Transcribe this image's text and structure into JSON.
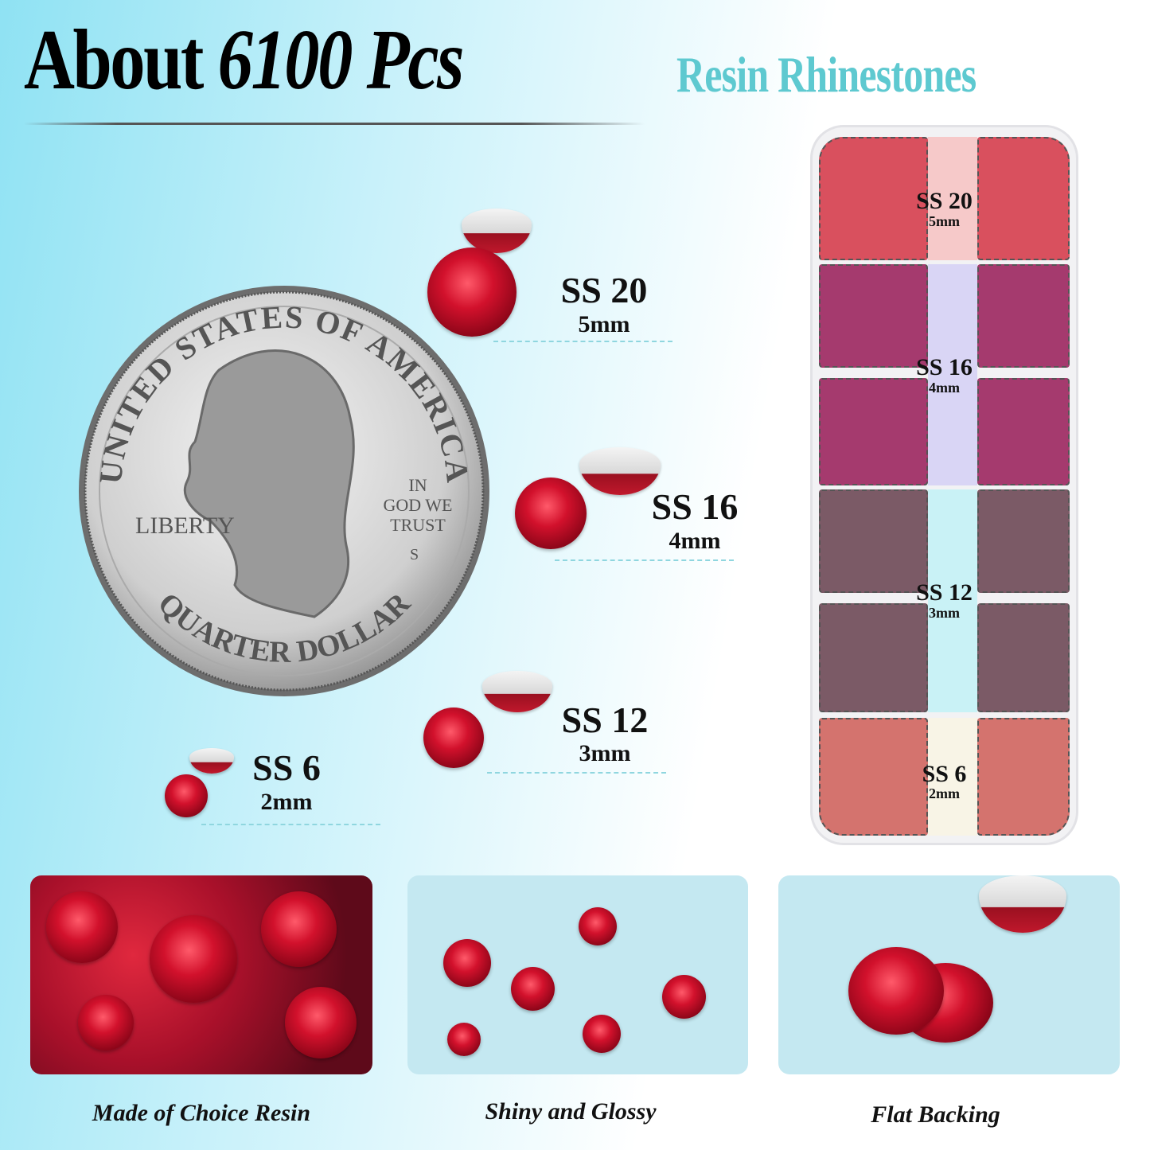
{
  "header": {
    "title_about": "About",
    "title_count": "6100 Pcs",
    "subtitle": "Resin Rhinestones"
  },
  "coin": {
    "top_text": "UNITED STATES OF AMERICA",
    "motto": [
      "IN",
      "GOD WE",
      "TRUST"
    ],
    "liberty": "LIBERTY",
    "mint": "S",
    "bottom_text": "QUARTER DOLLAR"
  },
  "sizes": [
    {
      "label": "SS 20",
      "mm": "5mm"
    },
    {
      "label": "SS 16",
      "mm": "4mm"
    },
    {
      "label": "SS 12",
      "mm": "3mm"
    },
    {
      "label": "SS 6",
      "mm": "2mm"
    }
  ],
  "box": {
    "sections": [
      {
        "label": "SS 20",
        "mm": "5mm",
        "tint": "#f6c9c9"
      },
      {
        "label": "SS 16",
        "mm": "4mm",
        "tint": "#d9d5f5"
      },
      {
        "label": "SS 12",
        "mm": "3mm",
        "tint": "#c9f2f6"
      },
      {
        "label": "SS 6",
        "mm": "2mm",
        "tint": "#f8f4e6"
      }
    ]
  },
  "features": [
    {
      "caption": "Made of Choice Resin"
    },
    {
      "caption": "Shiny and Glossy"
    },
    {
      "caption": "Flat Backing"
    }
  ],
  "colors": {
    "accent": "#5ec9d0",
    "stone": "#c8102e"
  }
}
